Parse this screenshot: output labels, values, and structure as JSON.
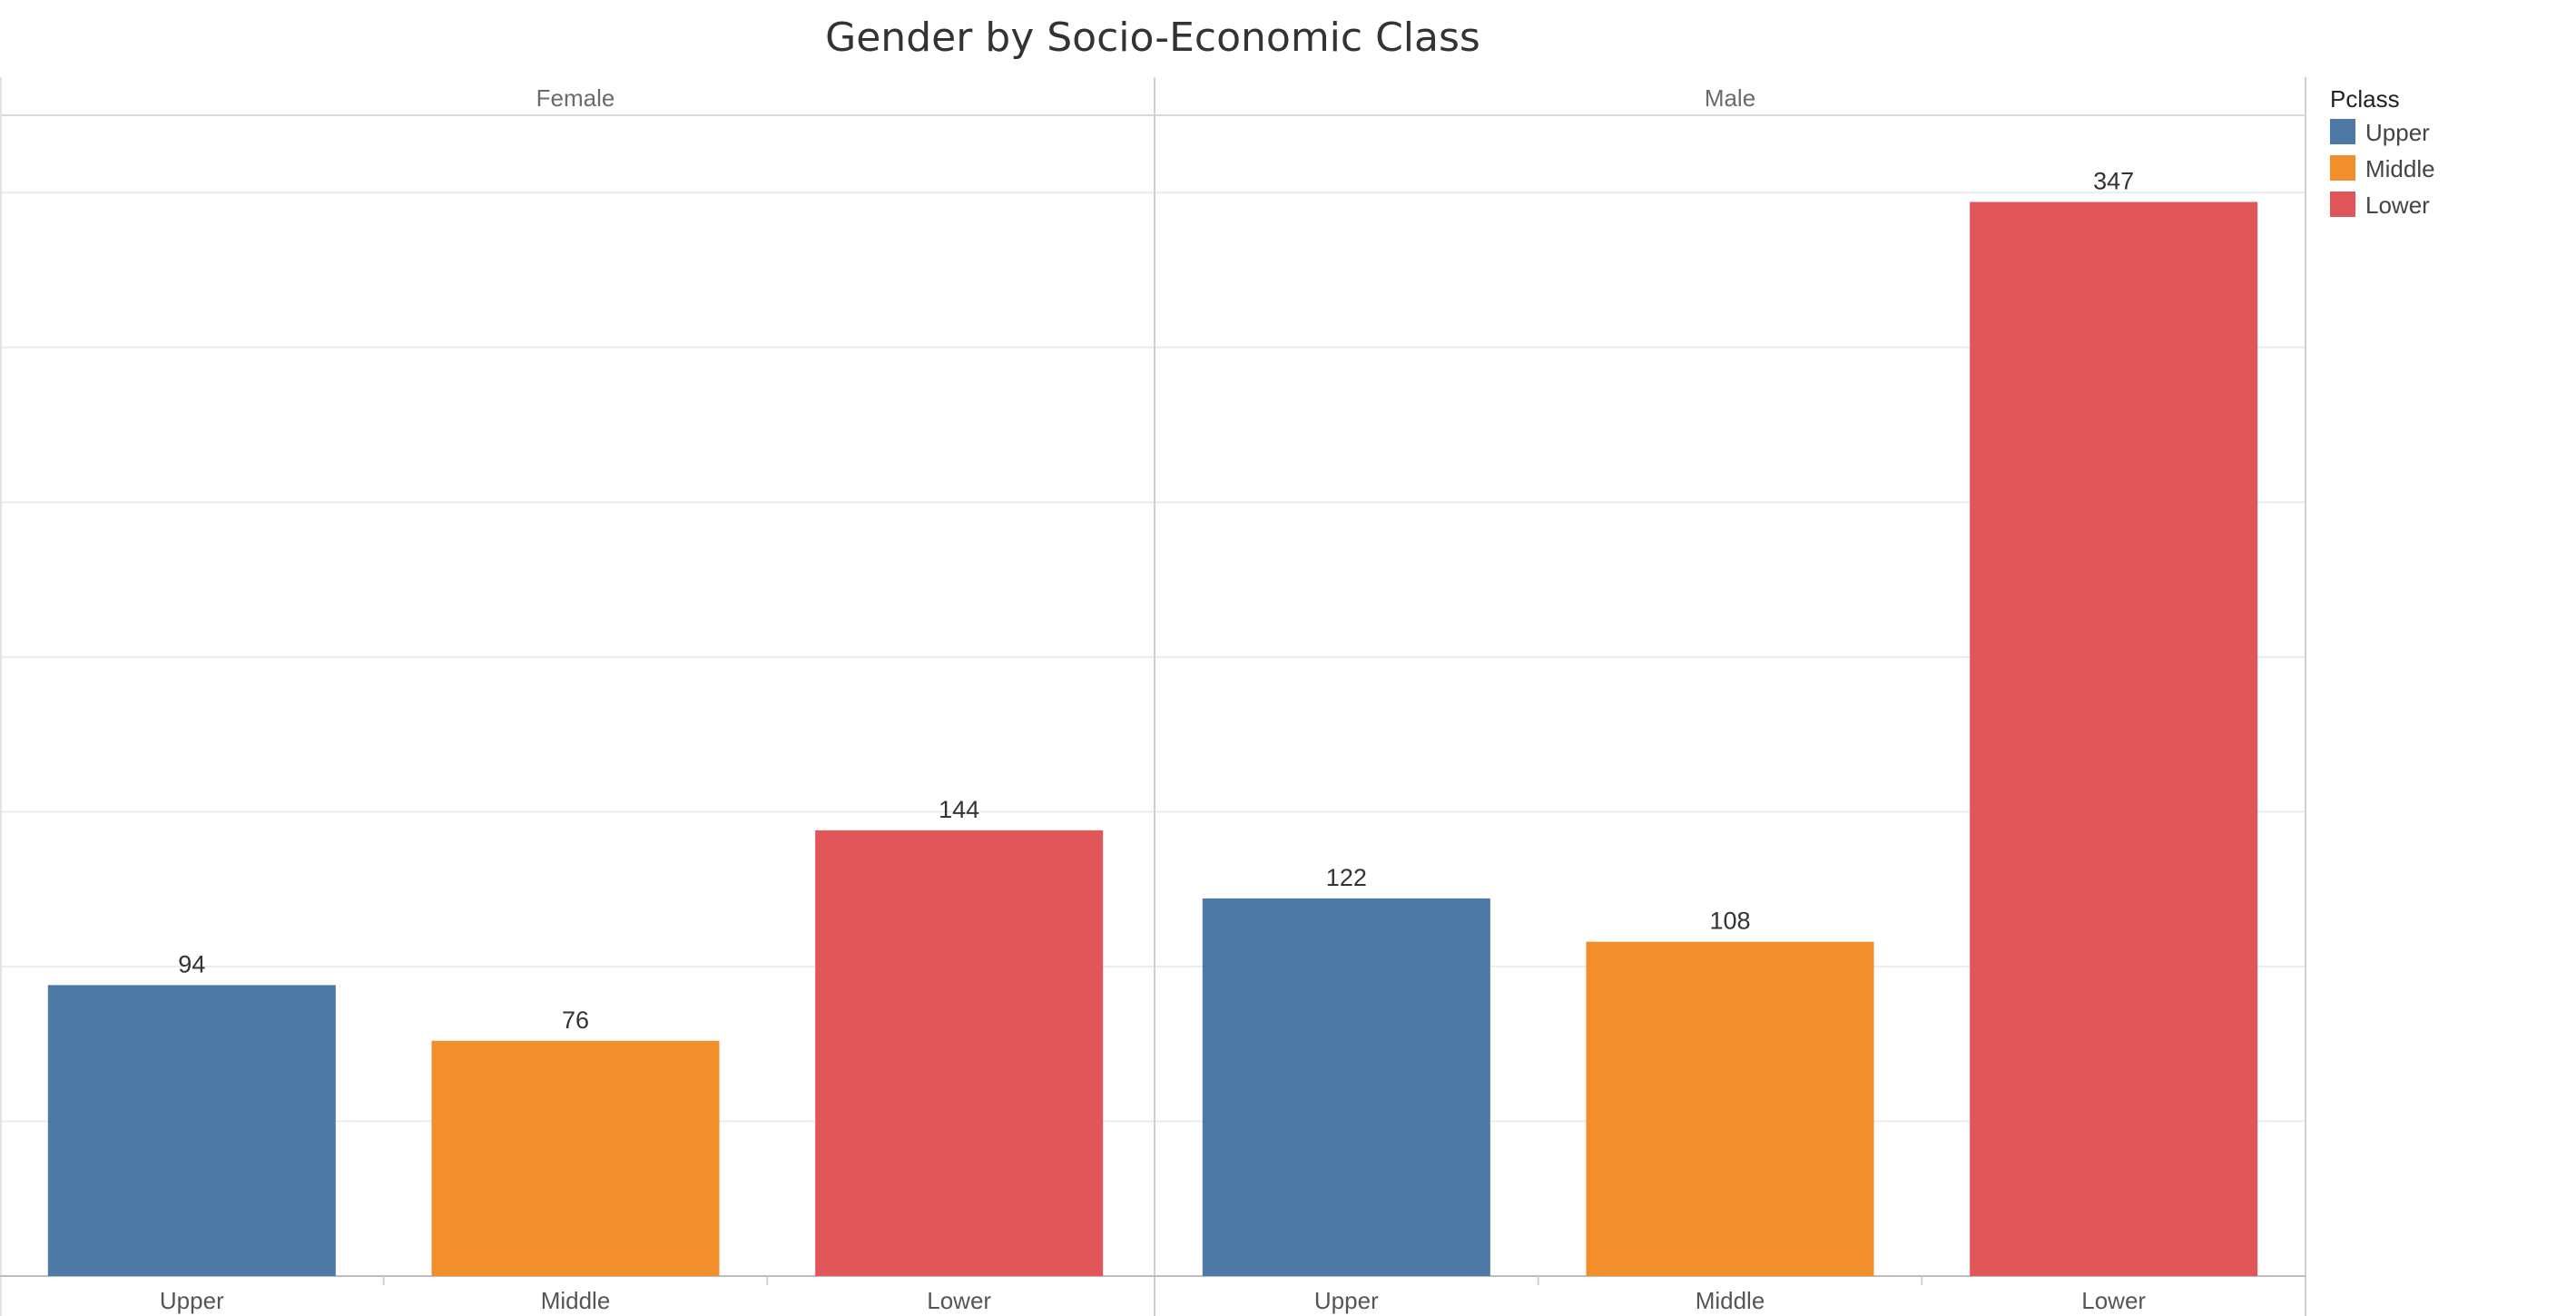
{
  "chart_data": {
    "type": "bar",
    "title": "Gender by Socio-Economic Class",
    "xlabel": "",
    "ylabel": "",
    "ylim": [
      0,
      375
    ],
    "grid": true,
    "legend": {
      "title": "Pclass",
      "placement": "right",
      "items": [
        {
          "label": "Upper",
          "color": "#4e79a7"
        },
        {
          "label": "Middle",
          "color": "#f28e2b"
        },
        {
          "label": "Lower",
          "color": "#e15759"
        }
      ]
    },
    "panels": [
      {
        "label": "Female",
        "categories": [
          "Upper",
          "Middle",
          "Lower"
        ],
        "values": [
          94,
          76,
          144
        ]
      },
      {
        "label": "Male",
        "categories": [
          "Upper",
          "Middle",
          "Lower"
        ],
        "values": [
          122,
          108,
          347
        ]
      }
    ]
  }
}
